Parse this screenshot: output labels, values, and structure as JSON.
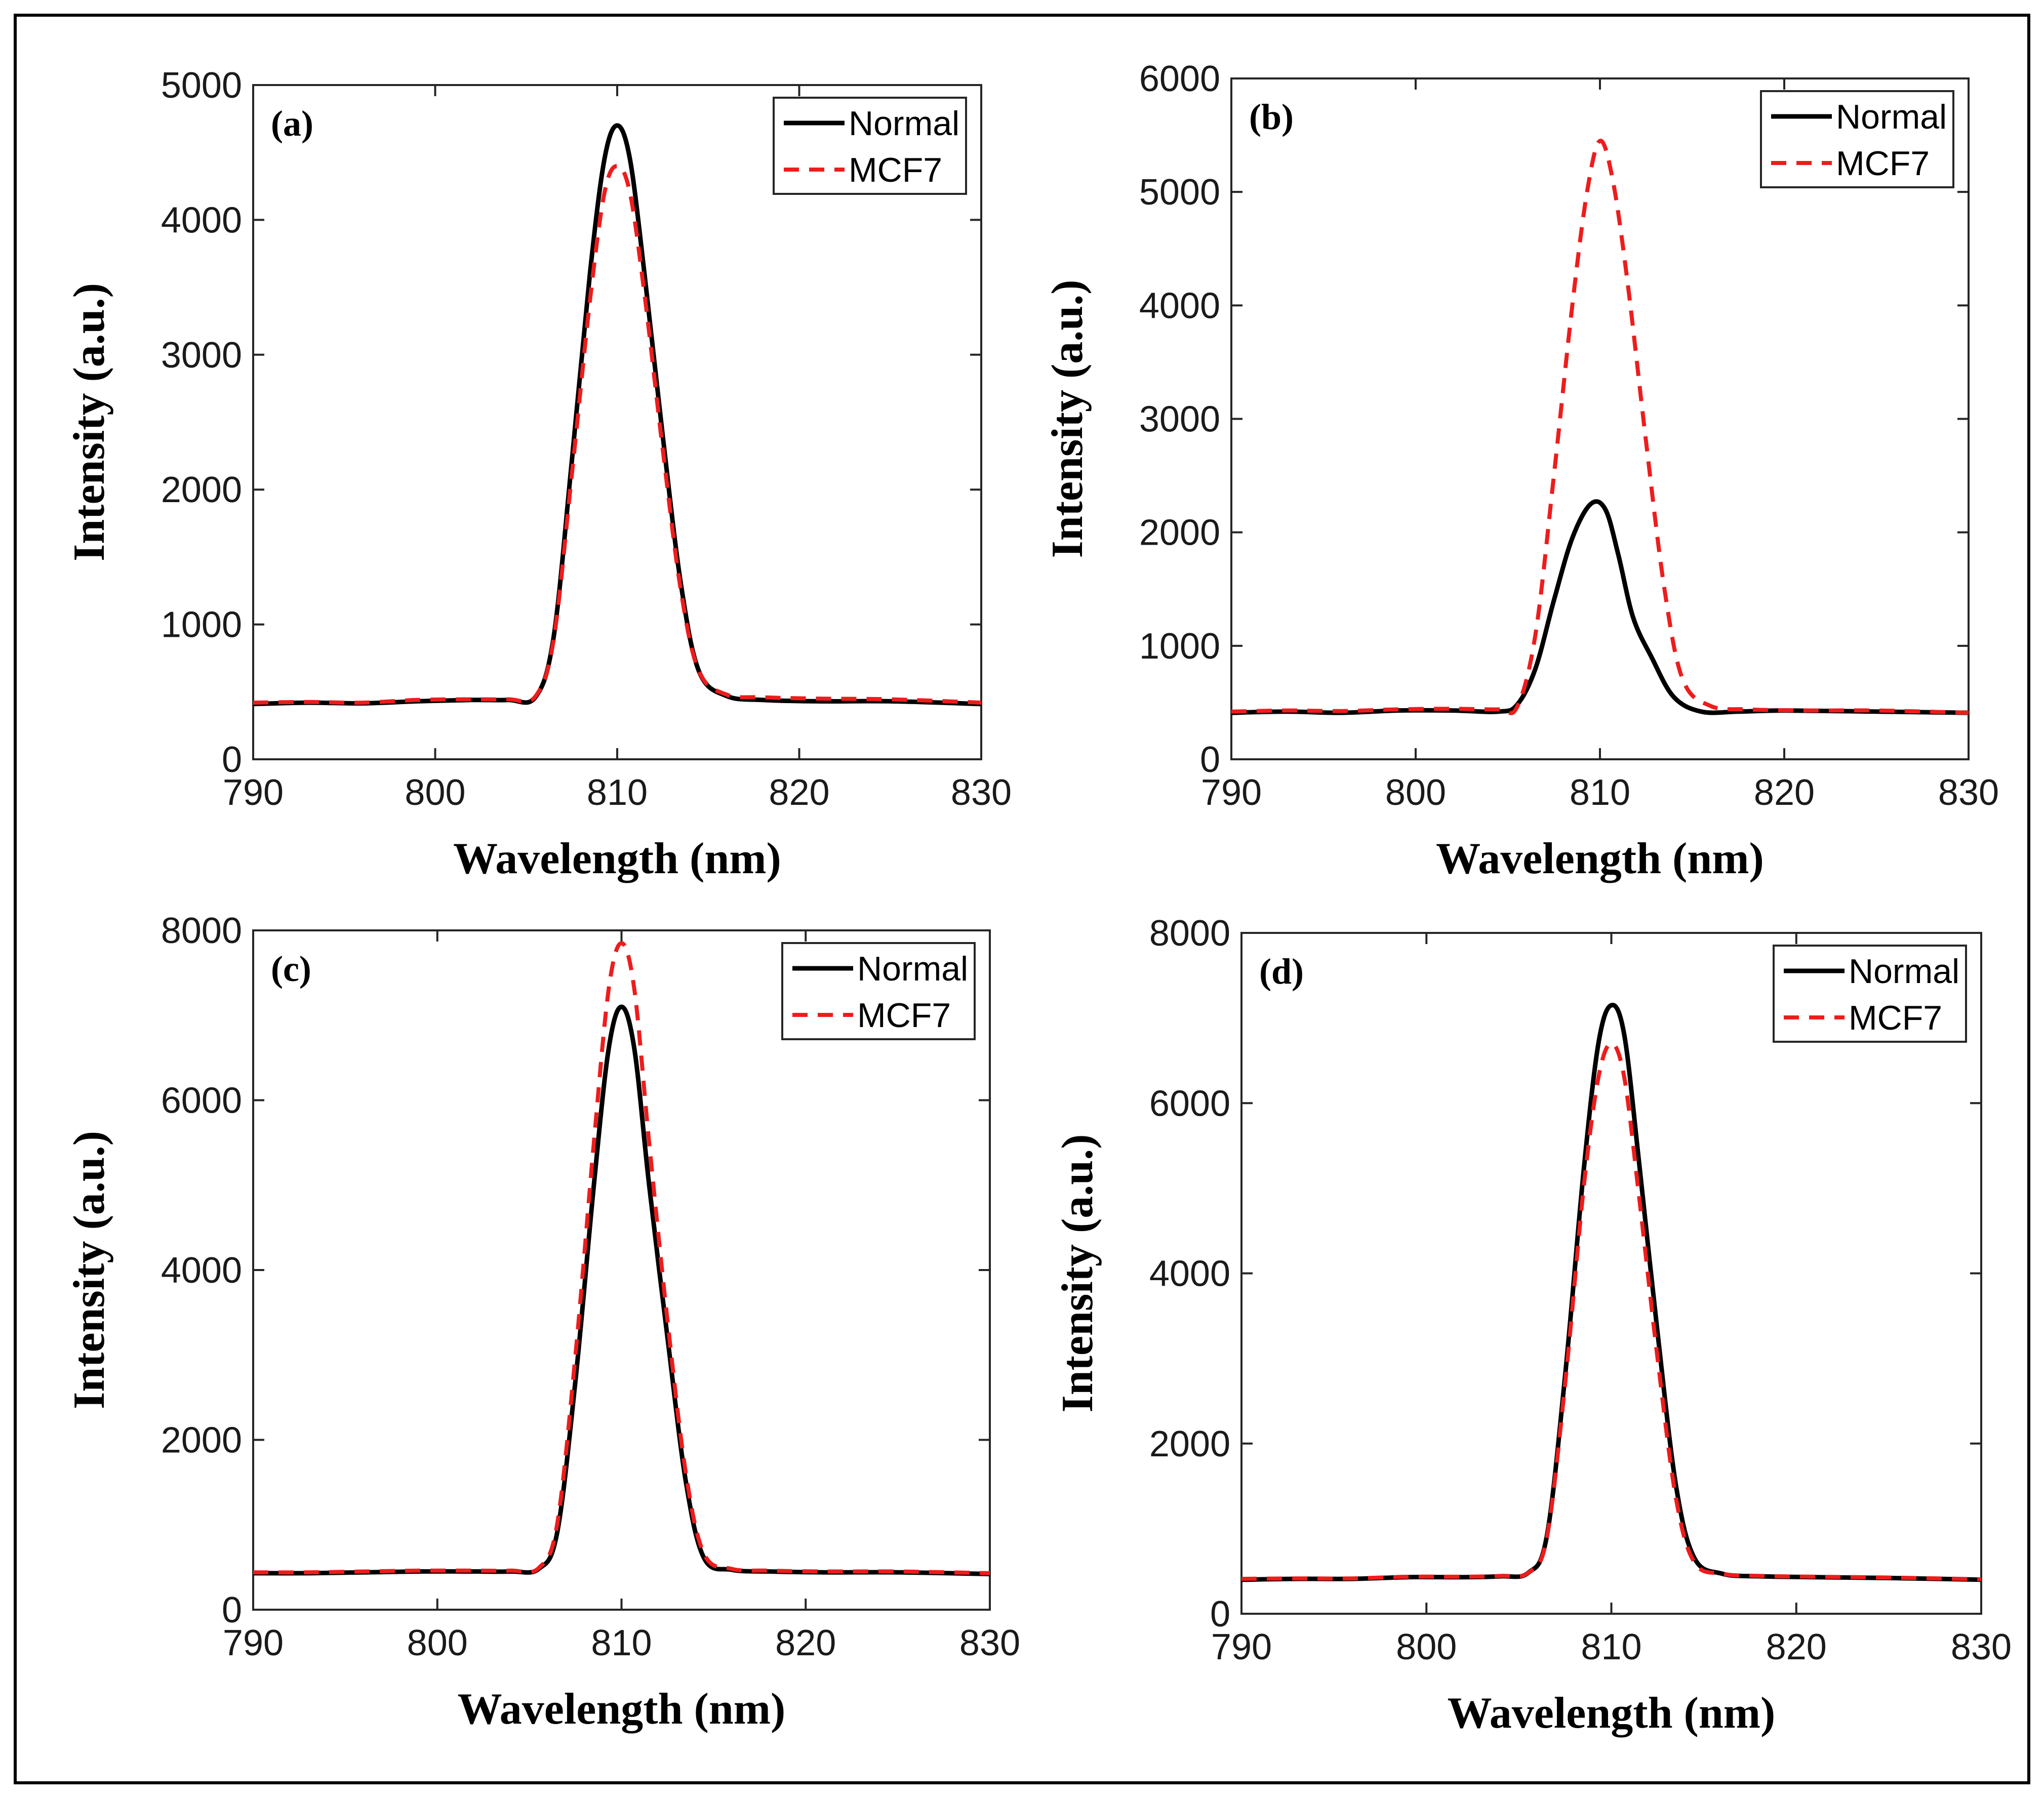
{
  "chart_data": [
    {
      "type": "line",
      "panel_label": "(a)",
      "xlabel": "Wavelength (nm)",
      "ylabel": "Intensity (a.u.)",
      "xlim": [
        790,
        830
      ],
      "ylim": [
        0,
        5000
      ],
      "xticks": [
        790,
        800,
        810,
        820,
        830
      ],
      "yticks": [
        0,
        1000,
        2000,
        3000,
        4000,
        5000
      ],
      "legend_position": "top-right",
      "series": [
        {
          "name": "Normal",
          "color": "#000000",
          "style": "solid",
          "x": [
            790,
            793,
            796,
            799,
            802,
            804,
            805.5,
            806.5,
            807.5,
            808.5,
            809.3,
            810,
            810.7,
            811.5,
            812.5,
            813.5,
            814.5,
            816,
            818,
            821,
            825,
            830
          ],
          "y": [
            410,
            420,
            415,
            430,
            440,
            440,
            460,
            900,
            2200,
            3600,
            4450,
            4700,
            4450,
            3600,
            2400,
            1300,
            650,
            470,
            440,
            430,
            430,
            410
          ]
        },
        {
          "name": "MCF7",
          "color": "#ee1c1c",
          "style": "dashed",
          "x": [
            790,
            793,
            796,
            799,
            802,
            804,
            805.5,
            806.5,
            807.5,
            808.5,
            809.3,
            810,
            810.7,
            811.5,
            812.5,
            813.5,
            814.5,
            816,
            818,
            821,
            825,
            830
          ],
          "y": [
            420,
            425,
            420,
            440,
            445,
            445,
            465,
            880,
            2100,
            3400,
            4200,
            4400,
            4200,
            3450,
            2300,
            1250,
            650,
            480,
            460,
            450,
            445,
            420
          ]
        }
      ]
    },
    {
      "type": "line",
      "panel_label": "(b)",
      "xlabel": "Wavelength (nm)",
      "ylabel": "Intensity (a.u.)",
      "xlim": [
        790,
        830
      ],
      "ylim": [
        0,
        6000
      ],
      "xticks": [
        790,
        800,
        810,
        820,
        830
      ],
      "yticks": [
        0,
        1000,
        2000,
        3000,
        4000,
        5000,
        6000
      ],
      "legend_position": "top-right",
      "series": [
        {
          "name": "Normal",
          "color": "#000000",
          "style": "solid",
          "x": [
            790,
            793,
            796,
            799,
            802,
            804.5,
            805.5,
            806.5,
            807.5,
            808.5,
            809.5,
            810.3,
            811,
            811.8,
            812.8,
            814,
            815.5,
            817.5,
            820,
            825,
            830
          ],
          "y": [
            410,
            420,
            410,
            430,
            430,
            420,
            480,
            800,
            1400,
            1950,
            2250,
            2200,
            1800,
            1250,
            900,
            550,
            420,
            420,
            430,
            420,
            410
          ]
        },
        {
          "name": "MCF7",
          "color": "#ee1c1c",
          "style": "dashed",
          "x": [
            790,
            793,
            796,
            799,
            802,
            804.5,
            805.5,
            806.5,
            807.5,
            808.5,
            809.3,
            810,
            810.7,
            811.5,
            812.5,
            813.5,
            814.5,
            816,
            818,
            821,
            825,
            830
          ],
          "y": [
            420,
            430,
            425,
            440,
            445,
            440,
            460,
            1100,
            2500,
            4000,
            5000,
            5450,
            5100,
            4200,
            2800,
            1500,
            700,
            470,
            440,
            430,
            430,
            410
          ]
        }
      ]
    },
    {
      "type": "line",
      "panel_label": "(c)",
      "xlabel": "Wavelength (nm)",
      "ylabel": "Intensity (a.u.)",
      "xlim": [
        790,
        830
      ],
      "ylim": [
        0,
        8000
      ],
      "xticks": [
        790,
        800,
        810,
        820,
        830
      ],
      "yticks": [
        0,
        2000,
        4000,
        6000,
        8000
      ],
      "legend_position": "top-right",
      "series": [
        {
          "name": "Normal",
          "color": "#000000",
          "style": "solid",
          "x": [
            790,
            793,
            796,
            799,
            802,
            804,
            805.5,
            806.5,
            807.5,
            808.5,
            809.3,
            810,
            810.7,
            811.5,
            812.5,
            813.5,
            814.5,
            816,
            818,
            821,
            825,
            830
          ],
          "y": [
            430,
            430,
            440,
            450,
            450,
            450,
            480,
            900,
            2700,
            5000,
            6600,
            7100,
            6600,
            5000,
            3200,
            1500,
            600,
            470,
            450,
            440,
            440,
            420
          ]
        },
        {
          "name": "MCF7",
          "color": "#ee1c1c",
          "style": "dashed",
          "x": [
            790,
            793,
            796,
            799,
            802,
            804,
            805.5,
            806.5,
            807.5,
            808.5,
            809.3,
            810,
            810.7,
            811.5,
            812.5,
            813.5,
            814.5,
            816,
            818,
            821,
            825,
            830
          ],
          "y": [
            440,
            440,
            450,
            460,
            460,
            460,
            490,
            1000,
            3000,
            5500,
            7300,
            7850,
            7300,
            5500,
            3400,
            1600,
            650,
            480,
            460,
            450,
            450,
            430
          ]
        }
      ]
    },
    {
      "type": "line",
      "panel_label": "(d)",
      "xlabel": "Wavelength (nm)",
      "ylabel": "Intensity (a.u.)",
      "xlim": [
        790,
        830
      ],
      "ylim": [
        0,
        8000
      ],
      "xticks": [
        790,
        800,
        810,
        820,
        830
      ],
      "yticks": [
        0,
        2000,
        4000,
        6000,
        8000
      ],
      "legend_position": "top-right",
      "series": [
        {
          "name": "Normal",
          "color": "#000000",
          "style": "solid",
          "x": [
            790,
            793,
            796,
            799,
            802,
            804,
            805.5,
            806.5,
            807.5,
            808.5,
            809.3,
            810,
            810.7,
            811.5,
            812.5,
            813.5,
            814.5,
            816,
            818,
            821,
            825,
            830
          ],
          "y": [
            400,
            410,
            410,
            430,
            430,
            440,
            480,
            900,
            2800,
            5200,
            6700,
            7150,
            6800,
            5300,
            3300,
            1500,
            650,
            470,
            440,
            430,
            420,
            400
          ]
        },
        {
          "name": "MCF7",
          "color": "#ee1c1c",
          "style": "dashed",
          "x": [
            790,
            793,
            796,
            799,
            802,
            804,
            805.5,
            806.5,
            807.5,
            808.5,
            809.3,
            810,
            810.7,
            811.5,
            812.5,
            813.5,
            814.5,
            816,
            818,
            821,
            825,
            830
          ],
          "y": [
            410,
            415,
            415,
            435,
            435,
            445,
            480,
            880,
            2700,
            5000,
            6300,
            6700,
            6300,
            4900,
            3000,
            1350,
            600,
            470,
            445,
            435,
            425,
            405
          ]
        }
      ]
    }
  ]
}
